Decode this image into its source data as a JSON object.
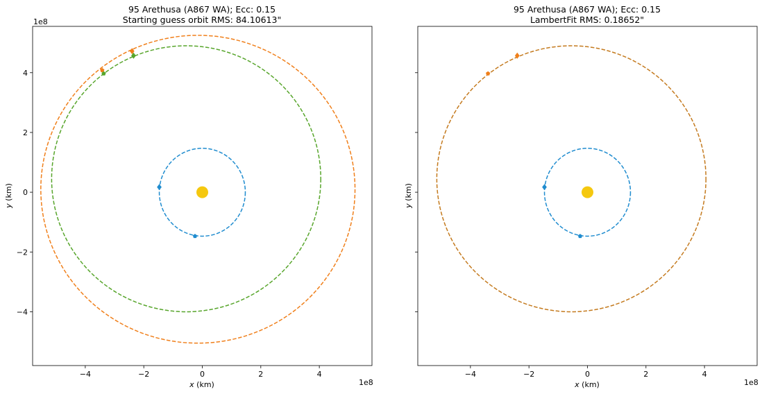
{
  "chart_data": [
    {
      "type": "line",
      "title_line1": "95 Arethusa (A867 WA); Ecc: 0.15",
      "title_line2": "Starting guess orbit RMS: 84.10613\"",
      "xlabel": "x (km)",
      "ylabel": "y (km)",
      "xlabel_var": "x",
      "xlabel_unit": " (km)",
      "ylabel_var": "y",
      "ylabel_unit": " (km)",
      "x_offset_label": "1e8",
      "y_offset_label": "1e8",
      "xlim": [
        -5.8,
        5.8
      ],
      "ylim": [
        -5.8,
        5.55
      ],
      "xticks": [
        -4,
        -2,
        0,
        2,
        4
      ],
      "xtick_labels": [
        "−4",
        "−2",
        "0",
        "2",
        "4"
      ],
      "yticks": [
        -4,
        -2,
        0,
        2,
        4
      ],
      "ytick_labels": [
        "−4",
        "−2",
        "0",
        "2",
        "4"
      ],
      "show_ytick_labels": true,
      "grid": false,
      "colors": {
        "earth": "#1f8ccf",
        "asteroid_guess": "#f07f1a",
        "asteroid_fit": "#57a52b",
        "sun": "#f5c80f"
      },
      "sun": {
        "x": 0.0,
        "y": 0.0
      },
      "orbits": [
        {
          "name": "earth-orbit",
          "color": "#1f8ccf",
          "cx": 0.0,
          "cy": 0.0,
          "rx": 1.47,
          "ry": 1.47
        },
        {
          "name": "guess-orbit",
          "color": "#f07f1a",
          "cx": -0.15,
          "cy": 0.1,
          "rx": 5.37,
          "ry": 5.15
        },
        {
          "name": "fitted-orbit",
          "color": "#57a52b",
          "cx": -0.55,
          "cy": 0.45,
          "rx": 4.6,
          "ry": 4.45
        }
      ],
      "markers": [
        {
          "name": "earth-pos-1",
          "color": "#1f8ccf",
          "shape": "diamond",
          "x": -1.47,
          "y": 0.17
        },
        {
          "name": "earth-pos-2",
          "color": "#1f8ccf",
          "shape": "pentagon",
          "x": -0.25,
          "y": -1.47
        },
        {
          "name": "guess-pos-1",
          "color": "#f07f1a",
          "shape": "diamond",
          "x": -2.4,
          "y": 4.72
        },
        {
          "name": "guess-pos-2",
          "color": "#f07f1a",
          "shape": "pentagon",
          "x": -3.42,
          "y": 4.08
        },
        {
          "name": "fit-pos-1",
          "color": "#57a52b",
          "shape": "diamond",
          "x": -2.35,
          "y": 4.57
        },
        {
          "name": "fit-pos-2",
          "color": "#57a52b",
          "shape": "pentagon",
          "x": -3.37,
          "y": 3.97
        }
      ]
    },
    {
      "type": "line",
      "title_line1": "95 Arethusa (A867 WA); Ecc: 0.15",
      "title_line2": "LambertFit RMS: 0.18652\"",
      "xlabel": "x (km)",
      "ylabel": "y (km)",
      "xlabel_var": "x",
      "xlabel_unit": " (km)",
      "ylabel_var": "y",
      "ylabel_unit": " (km)",
      "x_offset_label": "1e8",
      "y_offset_label": "",
      "xlim": [
        -5.8,
        5.8
      ],
      "ylim": [
        -5.8,
        5.55
      ],
      "xticks": [
        -4,
        -2,
        0,
        2,
        4
      ],
      "xtick_labels": [
        "−4",
        "−2",
        "0",
        "2",
        "4"
      ],
      "yticks": [
        -4,
        -2,
        0,
        2,
        4
      ],
      "ytick_labels": [],
      "show_ytick_labels": false,
      "grid": false,
      "colors": {
        "earth": "#1f8ccf",
        "asteroid_guess": "#f07f1a",
        "asteroid_fit": "#c47a1e",
        "sun": "#f5c80f"
      },
      "sun": {
        "x": 0.0,
        "y": 0.0
      },
      "orbits": [
        {
          "name": "earth-orbit",
          "color": "#1f8ccf",
          "cx": 0.0,
          "cy": 0.0,
          "rx": 1.47,
          "ry": 1.47
        },
        {
          "name": "fitted-orbit",
          "color": "#c47a1e",
          "cx": -0.55,
          "cy": 0.45,
          "rx": 4.6,
          "ry": 4.45
        }
      ],
      "markers": [
        {
          "name": "earth-pos-1",
          "color": "#1f8ccf",
          "shape": "diamond",
          "x": -1.47,
          "y": 0.17
        },
        {
          "name": "earth-pos-2",
          "color": "#1f8ccf",
          "shape": "pentagon",
          "x": -0.25,
          "y": -1.47
        },
        {
          "name": "fit-pos-1",
          "color": "#f07f1a",
          "shape": "diamond",
          "x": -2.4,
          "y": 4.57
        },
        {
          "name": "fit-pos-2",
          "color": "#f07f1a",
          "shape": "pentagon",
          "x": -3.4,
          "y": 3.97
        }
      ]
    }
  ]
}
